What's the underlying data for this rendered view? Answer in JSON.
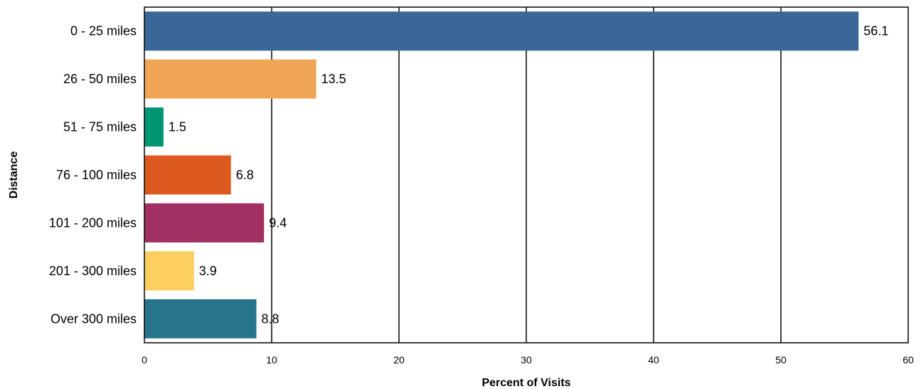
{
  "chart_data": {
    "type": "bar",
    "orientation": "horizontal",
    "title": "",
    "xlabel": "Percent of Visits",
    "ylabel": "Distance",
    "xlim": [
      0,
      60
    ],
    "xticks": [
      0,
      10,
      20,
      30,
      40,
      50,
      60
    ],
    "grid": "vertical",
    "legend": "none",
    "categories": [
      "0 - 25 miles",
      "26 - 50 miles",
      "51 - 75 miles",
      "76 - 100 miles",
      "101 - 200 miles",
      "201 - 300 miles",
      "Over 300 miles"
    ],
    "values": [
      56.1,
      13.5,
      1.5,
      6.8,
      9.4,
      3.9,
      8.8
    ],
    "value_labels": [
      "56.1",
      "13.5",
      "1.5",
      "6.8",
      "9.4",
      "3.9",
      "8.8"
    ],
    "colors": [
      "#3a6698",
      "#f0a555",
      "#009673",
      "#dc5a20",
      "#a12f62",
      "#fdcf60",
      "#27758b"
    ]
  }
}
